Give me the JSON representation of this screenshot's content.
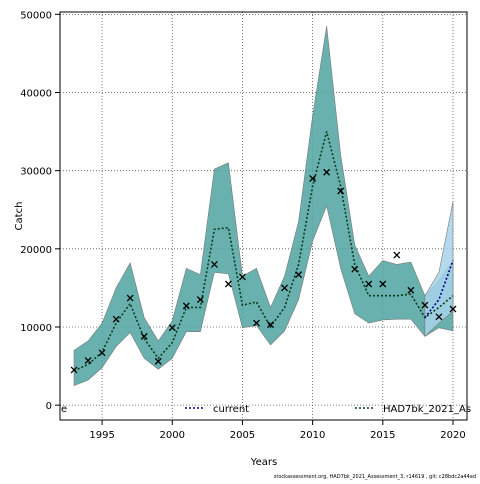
{
  "chart_data": {
    "type": "line",
    "xlabel": "Years",
    "ylabel": "Catch",
    "footnote": "stockassessment.org, HAD7bk_2021_Assessment_3, r14619 , git: c28bdc2a44ad",
    "x": [
      1993,
      1994,
      1995,
      1996,
      1997,
      1998,
      1999,
      2000,
      2001,
      2002,
      2003,
      2004,
      2005,
      2006,
      2007,
      2008,
      2009,
      2010,
      2011,
      2012,
      2013,
      2014,
      2015,
      2016,
      2017,
      2018,
      2019,
      2020
    ],
    "xlim": [
      1992,
      2021
    ],
    "xticks": [
      1995,
      2000,
      2005,
      2010,
      2015,
      2020
    ],
    "ylim": [
      -1900,
      50300
    ],
    "yticks": [
      0,
      10000,
      20000,
      30000,
      40000,
      50000
    ],
    "grid": true,
    "series": [
      {
        "name": "current",
        "color": "#00008b",
        "band_color": "#a8d4ea",
        "values": [
          null,
          null,
          null,
          null,
          null,
          null,
          null,
          null,
          null,
          null,
          null,
          null,
          null,
          null,
          null,
          null,
          null,
          null,
          null,
          null,
          null,
          null,
          null,
          null,
          null,
          11200,
          13500,
          18500
        ],
        "upper": [
          null,
          null,
          null,
          null,
          null,
          null,
          null,
          null,
          null,
          null,
          null,
          null,
          null,
          null,
          null,
          null,
          null,
          null,
          null,
          null,
          null,
          null,
          null,
          null,
          null,
          14000,
          17000,
          26000
        ],
        "lower": [
          null,
          null,
          null,
          null,
          null,
          null,
          null,
          null,
          null,
          null,
          null,
          null,
          null,
          null,
          null,
          null,
          null,
          null,
          null,
          null,
          null,
          null,
          null,
          null,
          null,
          8800,
          10500,
          12000
        ]
      },
      {
        "name": "HAD7bk_2021_As",
        "color": "#0b3b1e",
        "band_color": "#4fa3a0",
        "values": [
          4400,
          5200,
          6800,
          10500,
          13000,
          8500,
          6000,
          8000,
          12500,
          12500,
          22500,
          22700,
          12800,
          13200,
          10000,
          12500,
          18000,
          28000,
          35000,
          28000,
          18000,
          14000,
          14000,
          14000,
          14200,
          11200,
          12500,
          14000
        ],
        "upper": [
          7000,
          8200,
          10500,
          15000,
          18200,
          11200,
          8200,
          10800,
          17500,
          16700,
          30200,
          31000,
          16500,
          17500,
          12500,
          16500,
          23500,
          37000,
          48500,
          32000,
          20500,
          16500,
          18500,
          18000,
          18300,
          14000,
          16000,
          18500
        ],
        "lower": [
          2500,
          3200,
          4800,
          7500,
          9300,
          6000,
          4600,
          6000,
          9400,
          9400,
          17000,
          16800,
          9900,
          10200,
          7700,
          9500,
          13500,
          21000,
          25500,
          17500,
          11700,
          10500,
          10900,
          11000,
          11000,
          8800,
          9900,
          9500
        ]
      }
    ],
    "observed": {
      "name": "e",
      "color": "#000000",
      "values": [
        4500,
        5700,
        6700,
        11000,
        13700,
        8800,
        5600,
        9900,
        12700,
        13500,
        18000,
        15500,
        16400,
        10500,
        10300,
        15000,
        16700,
        29000,
        29800,
        27400,
        17400,
        15500,
        15500,
        19200,
        14700,
        12800,
        11300,
        12300
      ]
    }
  }
}
